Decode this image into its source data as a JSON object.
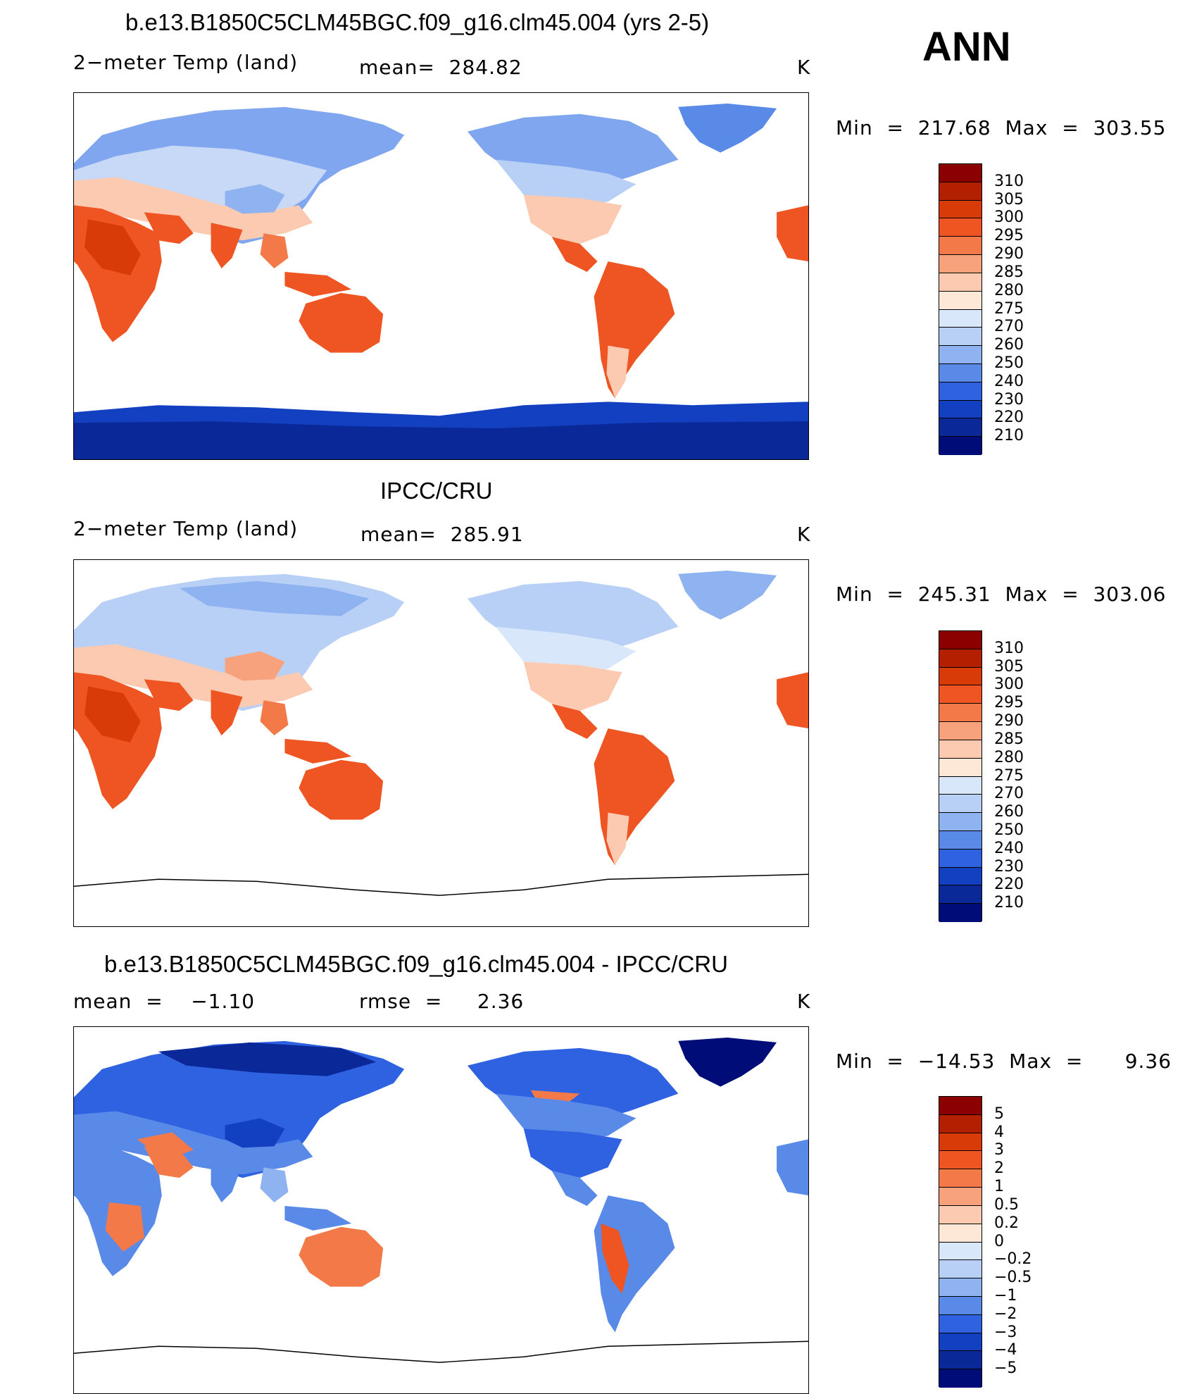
{
  "season_label": "ANN",
  "units": "K",
  "panels": [
    {
      "id": "model",
      "title": "b.e13.B1850C5CLM45BGC.f09_g16.clm45.004 (yrs 2-5)",
      "variable": "2−meter Temp (land)",
      "stat": "mean=  284.82",
      "units": "K",
      "minmax": "Min  =  217.68  Max  =  303.55",
      "colorbar": {
        "labels": [
          "310",
          "305",
          "300",
          "295",
          "290",
          "285",
          "280",
          "275",
          "270",
          "260",
          "250",
          "240",
          "230",
          "220",
          "210"
        ],
        "colors": [
          "#8b0000",
          "#b22000",
          "#d83a08",
          "#ee5522",
          "#f37a48",
          "#f7a27c",
          "#fbcab0",
          "#fde8d8",
          "#d8e8fa",
          "#b8d0f6",
          "#8fb2f0",
          "#5a8ae8",
          "#2e62e0",
          "#1340c0",
          "#0a2898",
          "#000c78"
        ]
      }
    },
    {
      "id": "obs",
      "title": "IPCC/CRU",
      "variable": "2−meter Temp (land)",
      "stat": "mean=  285.91",
      "units": "K",
      "minmax": "Min  =  245.31  Max  =  303.06",
      "colorbar": {
        "labels": [
          "310",
          "305",
          "300",
          "295",
          "290",
          "285",
          "280",
          "275",
          "270",
          "260",
          "250",
          "240",
          "230",
          "220",
          "210"
        ],
        "colors": [
          "#8b0000",
          "#b22000",
          "#d83a08",
          "#ee5522",
          "#f37a48",
          "#f7a27c",
          "#fbcab0",
          "#fde8d8",
          "#d8e8fa",
          "#b8d0f6",
          "#8fb2f0",
          "#5a8ae8",
          "#2e62e0",
          "#1340c0",
          "#0a2898",
          "#000c78"
        ]
      }
    },
    {
      "id": "diff",
      "title": "b.e13.B1850C5CLM45BGC.f09_g16.clm45.004 - IPCC/CRU",
      "variable": "mean  =    −1.10",
      "stat": "rmse  =     2.36",
      "units": "K",
      "minmax": "Min  =  −14.53  Max  =      9.36",
      "colorbar": {
        "labels": [
          "5",
          "4",
          "3",
          "2",
          "1",
          "0.5",
          "0.2",
          "0",
          "−0.2",
          "−0.5",
          "−1",
          "−2",
          "−3",
          "−4",
          "−5"
        ],
        "colors": [
          "#8b0000",
          "#b22000",
          "#d83a08",
          "#ee5522",
          "#f37a48",
          "#f7a27c",
          "#fbcab0",
          "#fde8d8",
          "#d8e8fa",
          "#b8d0f6",
          "#8fb2f0",
          "#5a8ae8",
          "#2e62e0",
          "#1340c0",
          "#0a2898",
          "#000c78"
        ]
      }
    }
  ]
}
